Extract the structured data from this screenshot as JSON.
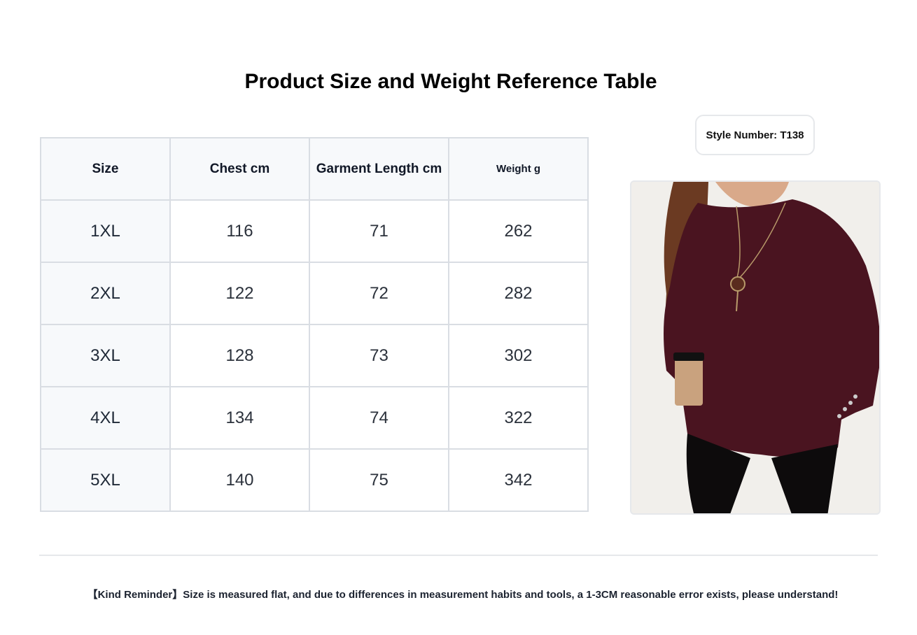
{
  "title": "Product Size and Weight Reference Table",
  "table": {
    "headers": [
      "Size",
      "Chest cm",
      "Garment Length cm",
      "Weight g"
    ],
    "rows": [
      [
        "1XL",
        "116",
        "71",
        "262"
      ],
      [
        "2XL",
        "122",
        "72",
        "282"
      ],
      [
        "3XL",
        "128",
        "73",
        "302"
      ],
      [
        "4XL",
        "134",
        "74",
        "322"
      ],
      [
        "5XL",
        "140",
        "75",
        "342"
      ]
    ]
  },
  "style_number": "Style Number: T138",
  "product_image": {
    "description_icon": "burgundy-long-sleeve-top-photo",
    "garment_color": "#4a1420"
  },
  "reminder": "【Kind Reminder】Size is measured flat, and due to differences in measurement habits and tools, a 1-3CM reasonable error exists, please understand!"
}
